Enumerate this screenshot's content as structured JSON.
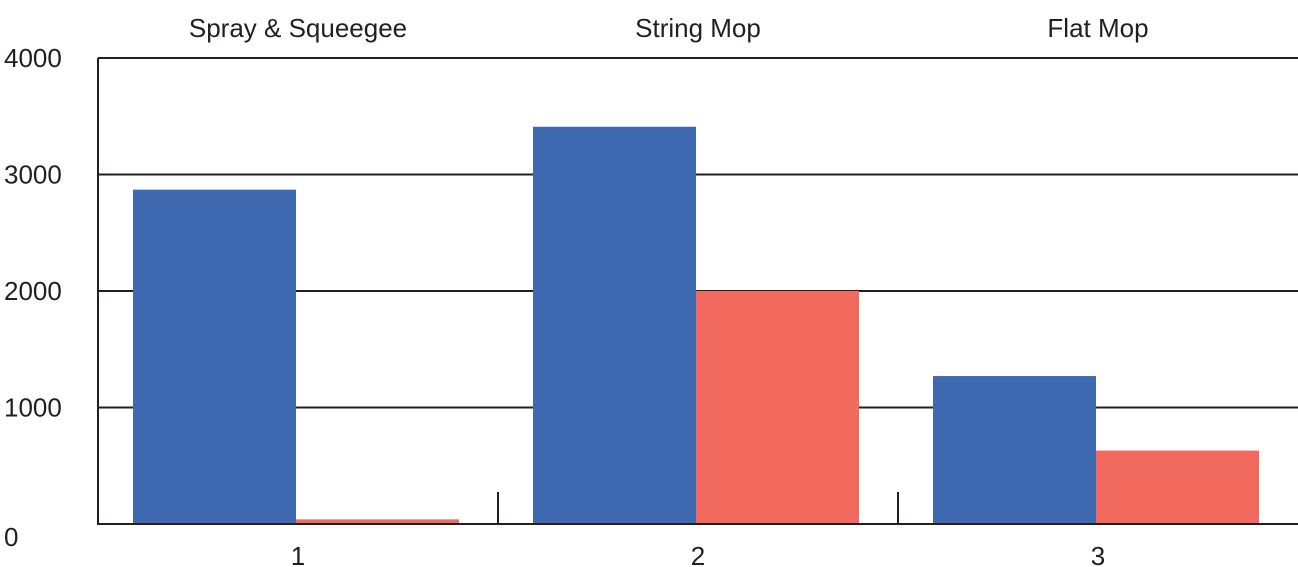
{
  "chart_data": {
    "type": "bar",
    "title": "",
    "xlabel": "",
    "ylabel": "",
    "categories": [
      "1",
      "2",
      "3"
    ],
    "group_labels": [
      "Spray & Squeegee",
      "String Mop",
      "Flat Mop"
    ],
    "yticks": [
      "0",
      "1000",
      "2000",
      "3000",
      "4000"
    ],
    "ylim": [
      0,
      4000
    ],
    "grid": true,
    "series": [
      {
        "values": [
          2870,
          3410,
          1270
        ],
        "color": "#3e69b1"
      },
      {
        "values": [
          40,
          2000,
          630
        ],
        "color": "#f26a5d"
      }
    ]
  }
}
